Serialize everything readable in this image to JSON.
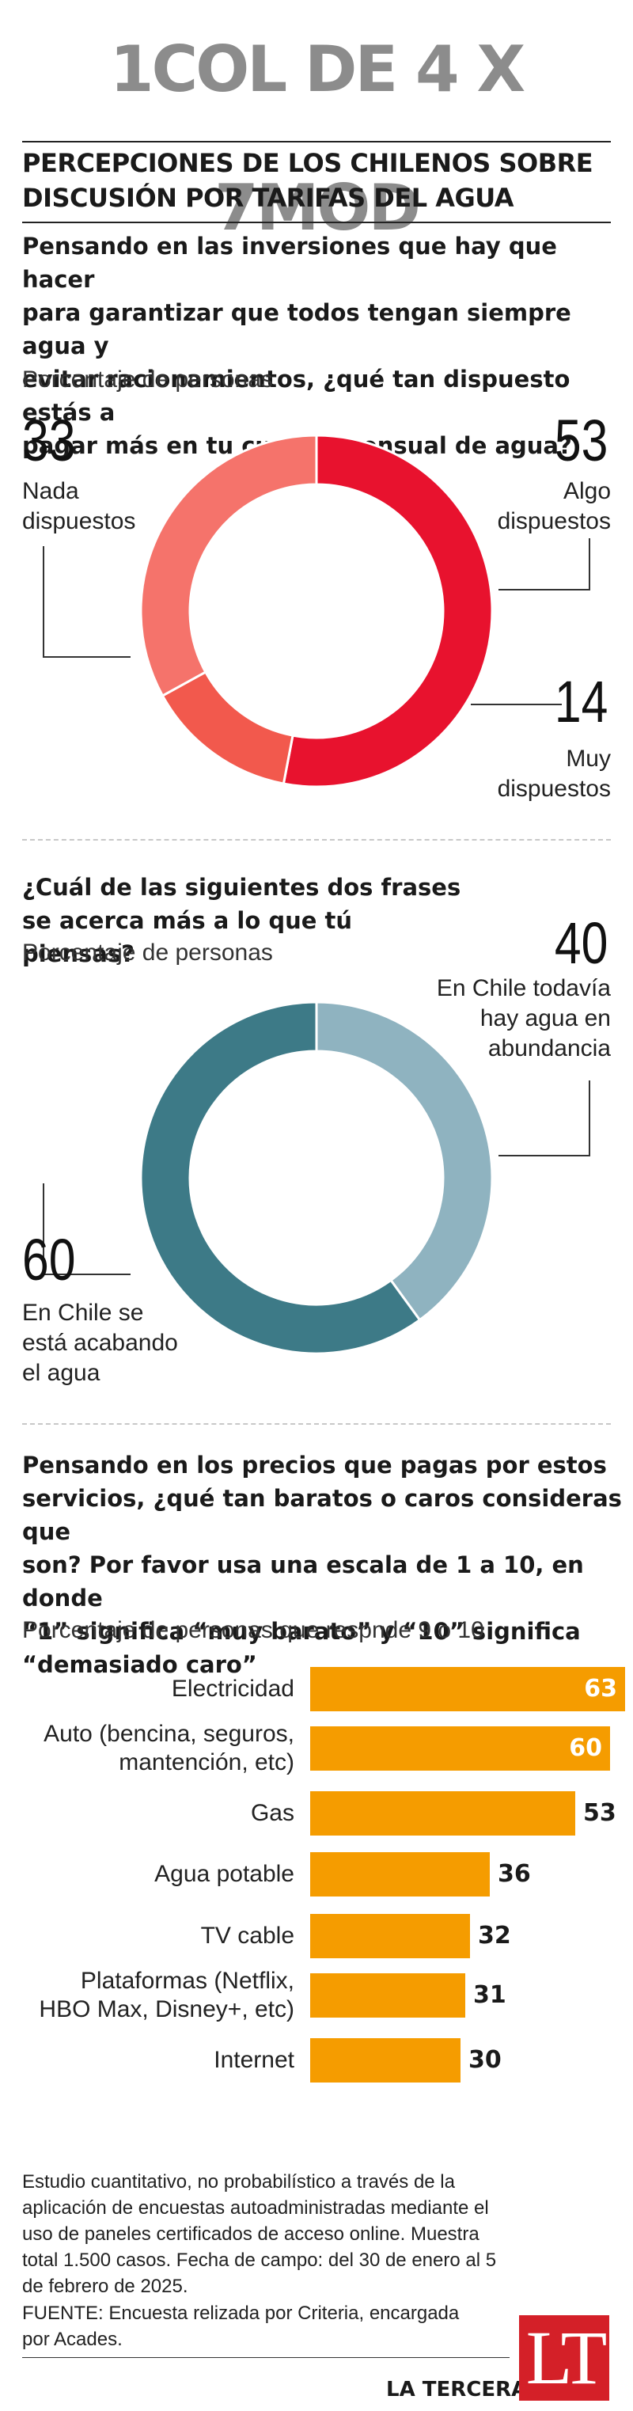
{
  "header": {
    "banner": "1COL DE 4 X 7MOD",
    "title_line1": "PERCEPCIONES DE LOS CHILENOS SOBRE",
    "title_line2": "DISCUSIÓN POR TARIFAS DEL AGUA"
  },
  "section1": {
    "question_lines": [
      "Pensando en las inversiones que hay que hacer",
      "para garantizar que todos tengan siempre agua y",
      "evitar racionamientos, ¿qué tan dispuesto estás a",
      "pagar más en tu cuenta mensual de agua?"
    ],
    "subtitle": "Porcentaje de personas",
    "values": {
      "nada": "33",
      "algo": "53",
      "muy": "14"
    },
    "labels": {
      "nada_l1": "Nada",
      "nada_l2": "dispuestos",
      "algo_l1": "Algo",
      "algo_l2": "dispuestos",
      "muy_l1": "Muy",
      "muy_l2": "dispuestos"
    },
    "colors": {
      "algo": "#e8122e",
      "nada": "#f5736b",
      "muy": "#f2594d"
    }
  },
  "section2": {
    "question_lines": [
      "¿Cuál de las siguientes dos frases",
      "se acerca más a lo que tú piensas?"
    ],
    "subtitle": "Porcentaje de personas",
    "values": {
      "abundancia": "40",
      "acabando": "60"
    },
    "labels": {
      "ab_l1": "En Chile todavía",
      "ab_l2": "hay agua en",
      "ab_l3": "abundancia",
      "ac_l1": "En Chile se",
      "ac_l2": "está acabando",
      "ac_l3": "el agua"
    },
    "colors": {
      "abundancia": "#8fb3c0",
      "acabando": "#3d7a87"
    }
  },
  "section3": {
    "question_lines": [
      "Pensando en los precios que pagas por estos",
      "servicios, ¿qué tan baratos o caros consideras que",
      "son? Por favor usa una escala de 1 a 10, en donde",
      "“1” significa “muy barato” y “10” significa",
      "“demasiado caro”"
    ],
    "subtitle": "Porcentaje de personas que respnde 9 o 10"
  },
  "chart_data": [
    {
      "type": "pie",
      "title": "Pensando en las inversiones que hay que hacer para garantizar que todos tengan siempre agua y evitar racionamientos, ¿qué tan dispuesto estás a pagar más en tu cuenta mensual de agua?",
      "subtitle": "Porcentaje de personas",
      "categories": [
        "Algo dispuestos",
        "Muy dispuestos",
        "Nada dispuestos"
      ],
      "values": [
        53,
        14,
        33
      ],
      "colors": [
        "#e8122e",
        "#f2594d",
        "#f5736b"
      ]
    },
    {
      "type": "pie",
      "title": "¿Cuál de las siguientes dos frases se acerca más a lo que tú piensas?",
      "subtitle": "Porcentaje de personas",
      "categories": [
        "En Chile todavía hay agua en abundancia",
        "En Chile se está acabando el agua"
      ],
      "values": [
        40,
        60
      ],
      "colors": [
        "#8fb3c0",
        "#3d7a87"
      ]
    },
    {
      "type": "bar",
      "orientation": "horizontal",
      "subtitle": "Porcentaje de personas que respnde 9 o 10",
      "categories": [
        [
          "Electricidad"
        ],
        [
          "Auto (bencina, seguros,",
          "mantención, etc)"
        ],
        [
          "Gas"
        ],
        [
          "Agua potable"
        ],
        [
          "TV cable"
        ],
        [
          "Plataformas (Netflix,",
          "HBO Max, Disney+, etc)"
        ],
        [
          "Internet"
        ]
      ],
      "values": [
        63,
        60,
        53,
        36,
        32,
        31,
        30
      ],
      "xlim": [
        0,
        63
      ],
      "color": "#f59c00"
    }
  ],
  "footer": {
    "note_lines": [
      " Estudio cuantitativo, no probabilístico a través de la",
      "aplicación de encuestas autoadministradas mediante el",
      "uso de paneles certificados de acceso online. Muestra",
      "total 1.500 casos. Fecha de campo: del 30 de enero al 5",
      "de febrero de 2025."
    ],
    "source_lines": [
      "FUENTE: Encuesta relizada por Criteria, encargada",
      "por Acades."
    ],
    "brand": "LA TERCERA",
    "logo": "LT"
  }
}
